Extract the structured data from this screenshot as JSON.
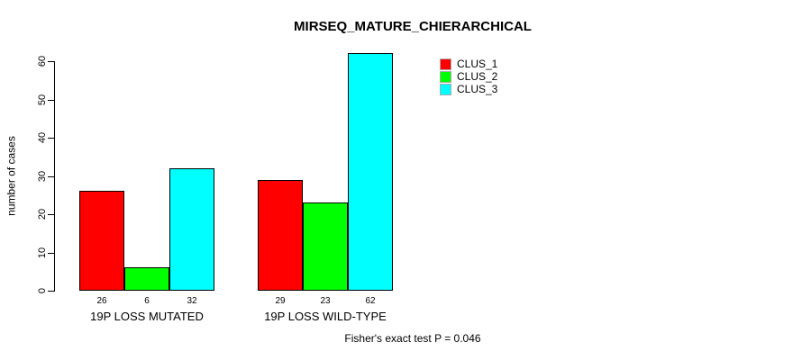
{
  "chart_data": {
    "type": "bar",
    "title": "MIRSEQ_MATURE_CHIERARCHICAL",
    "xlabel": "",
    "ylabel": "number of cases",
    "ylim": [
      0,
      63
    ],
    "yticks": [
      0,
      10,
      20,
      30,
      40,
      50,
      60
    ],
    "grid": false,
    "legend_position": "top-right",
    "categories": [
      "19P LOSS MUTATED",
      "19P LOSS WILD-TYPE"
    ],
    "series": [
      {
        "name": "CLUS_1",
        "color": "#ff0000",
        "values": [
          26,
          29
        ]
      },
      {
        "name": "CLUS_2",
        "color": "#00ff00",
        "values": [
          6,
          23
        ]
      },
      {
        "name": "CLUS_3",
        "color": "#00ffff",
        "values": [
          32,
          62
        ]
      }
    ],
    "value_labels_under_bars": true,
    "annotation": "Fisher's exact test P = 0.046",
    "colors": {
      "bar_border": "#000000",
      "axis": "#000000",
      "background": "#ffffff"
    }
  }
}
